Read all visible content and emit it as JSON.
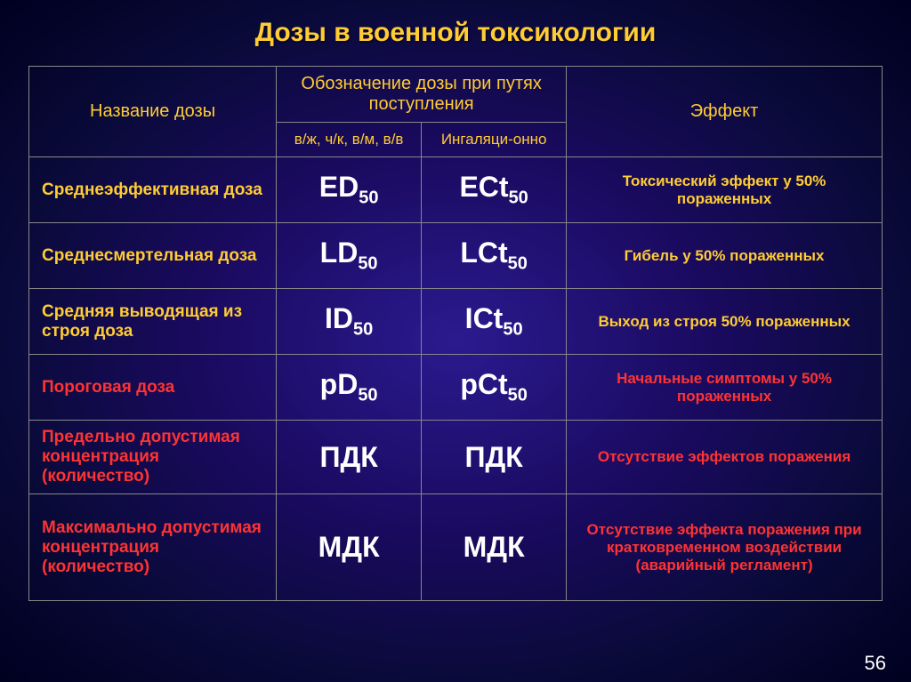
{
  "title": "Дозы в военной токсикологии",
  "headers": {
    "name": "Название дозы",
    "designation": "Обозначение дозы при путях поступления",
    "route1": "в/ж, ч/к, в/м, в/в",
    "route2": "Ингаляци-онно",
    "effect": "Эффект"
  },
  "rows": [
    {
      "name": "Среднеэффективная доза",
      "nameColor": "yellow",
      "sym1": "ED",
      "sub1": "50",
      "sym2": "ECt",
      "sub2": "50",
      "effect": "Токсический эффект у 50% пораженных",
      "effColor": "yellow"
    },
    {
      "name": "Среднесмертельная доза",
      "nameColor": "yellow",
      "sym1": "LD",
      "sub1": "50",
      "sym2": "LCt",
      "sub2": "50",
      "effect": "Гибель у 50% пораженных",
      "effColor": "yellow"
    },
    {
      "name": "Средняя выводящая из строя доза",
      "nameColor": "yellow",
      "sym1": "ID",
      "sub1": "50",
      "sym2": "ICt",
      "sub2": "50",
      "effect": "Выход из строя 50% пораженных",
      "effColor": "yellow"
    },
    {
      "name": "Пороговая доза",
      "nameColor": "red",
      "sym1": "pD",
      "sub1": "50",
      "sym2": "pCt",
      "sub2": "50",
      "effect": "Начальные симптомы у 50% пораженных",
      "effColor": "red"
    },
    {
      "name": "Предельно допустимая концентрация (количество)",
      "nameColor": "red",
      "sym1": "ПДК",
      "sub1": "",
      "sym2": "ПДК",
      "sub2": "",
      "effect": "Отсутствие эффектов поражения",
      "effColor": "red"
    },
    {
      "name": "Максимально допустимая концентрация (количество)",
      "nameColor": "red",
      "sym1": "МДК",
      "sub1": "",
      "sym2": "МДК",
      "sub2": "",
      "effect": "Отсутствие эффекта поражения при кратковременном воздействии (аварийный регламент)",
      "effColor": "red",
      "tall": true
    }
  ],
  "pageNumber": "56",
  "colors": {
    "title": "#ffcc33",
    "yellow": "#ffcc33",
    "red": "#ff3333",
    "border": "#888888",
    "text": "#ffffff"
  }
}
